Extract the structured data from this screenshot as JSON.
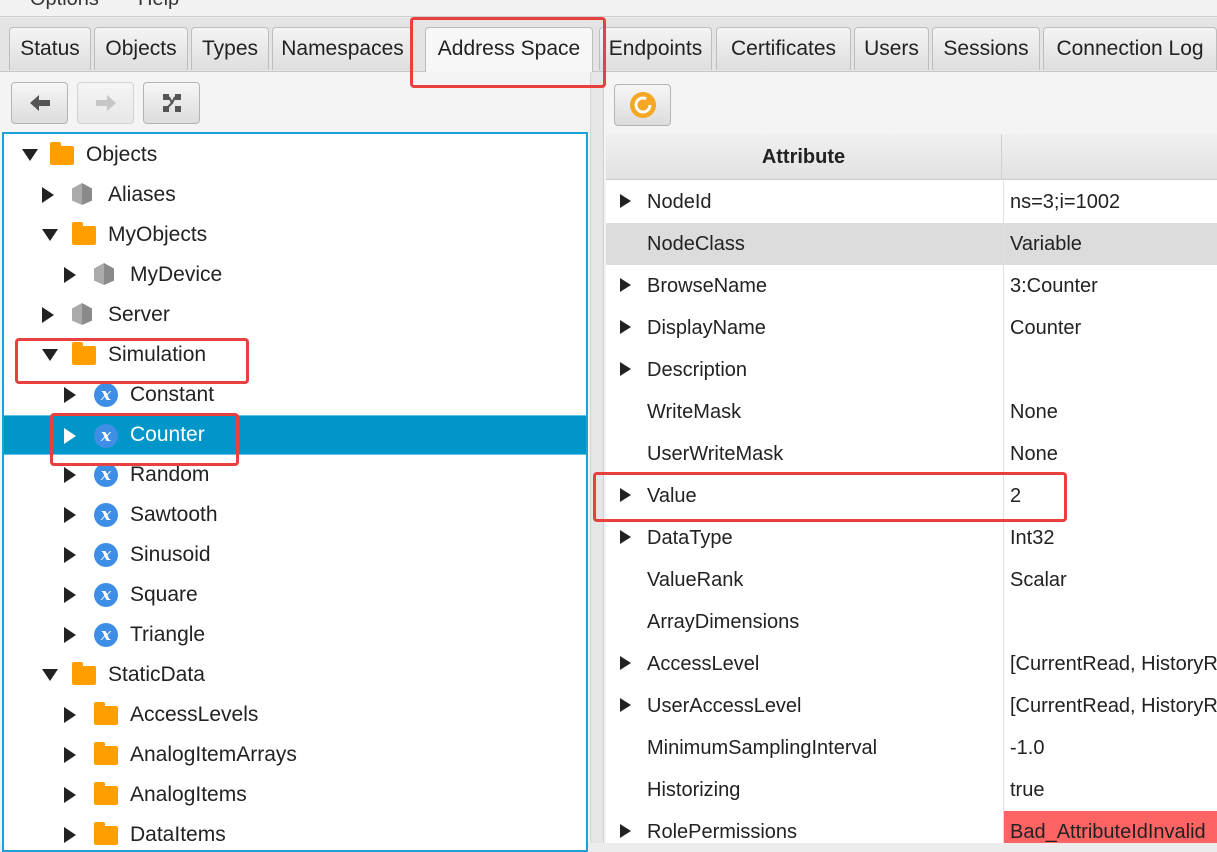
{
  "menu": [
    "Options",
    "Help"
  ],
  "tabs": [
    "Status",
    "Objects",
    "Types",
    "Namespaces",
    "Address Space",
    "Endpoints",
    "Certificates",
    "Users",
    "Sessions",
    "Connection Log"
  ],
  "active_tab": "Address Space",
  "tree": [
    {
      "label": "Objects",
      "icon": "folder",
      "level": 0,
      "expanded": true
    },
    {
      "label": "Aliases",
      "icon": "object",
      "level": 1,
      "expanded": false
    },
    {
      "label": "MyObjects",
      "icon": "folder",
      "level": 1,
      "expanded": true
    },
    {
      "label": "MyDevice",
      "icon": "object",
      "level": 2,
      "expanded": false
    },
    {
      "label": "Server",
      "icon": "object",
      "level": 1,
      "expanded": false
    },
    {
      "label": "Simulation",
      "icon": "folder",
      "level": 1,
      "expanded": true
    },
    {
      "label": "Constant",
      "icon": "variable",
      "level": 2,
      "expanded": false
    },
    {
      "label": "Counter",
      "icon": "variable",
      "level": 2,
      "expanded": false,
      "selected": true
    },
    {
      "label": "Random",
      "icon": "variable",
      "level": 2,
      "expanded": false
    },
    {
      "label": "Sawtooth",
      "icon": "variable",
      "level": 2,
      "expanded": false
    },
    {
      "label": "Sinusoid",
      "icon": "variable",
      "level": 2,
      "expanded": false
    },
    {
      "label": "Square",
      "icon": "variable",
      "level": 2,
      "expanded": false
    },
    {
      "label": "Triangle",
      "icon": "variable",
      "level": 2,
      "expanded": false
    },
    {
      "label": "StaticData",
      "icon": "folder",
      "level": 1,
      "expanded": true
    },
    {
      "label": "AccessLevels",
      "icon": "folder",
      "level": 2,
      "expanded": false
    },
    {
      "label": "AnalogItemArrays",
      "icon": "folder",
      "level": 2,
      "expanded": false
    },
    {
      "label": "AnalogItems",
      "icon": "folder",
      "level": 2,
      "expanded": false
    },
    {
      "label": "DataItems",
      "icon": "folder",
      "level": 2,
      "expanded": false
    }
  ],
  "attributes": {
    "header": [
      "Attribute",
      ""
    ],
    "rows": [
      {
        "attr": "NodeId",
        "value": "ns=3;i=1002",
        "expandable": true
      },
      {
        "attr": "NodeClass",
        "value": "Variable",
        "expandable": false,
        "highlight": true
      },
      {
        "attr": "BrowseName",
        "value": "3:Counter",
        "expandable": true
      },
      {
        "attr": "DisplayName",
        "value": "Counter",
        "expandable": true
      },
      {
        "attr": "Description",
        "value": "",
        "expandable": true
      },
      {
        "attr": "WriteMask",
        "value": "None",
        "expandable": false
      },
      {
        "attr": "UserWriteMask",
        "value": "None",
        "expandable": false
      },
      {
        "attr": "Value",
        "value": "2",
        "expandable": true
      },
      {
        "attr": "DataType",
        "value": "Int32",
        "expandable": true
      },
      {
        "attr": "ValueRank",
        "value": "Scalar",
        "expandable": false
      },
      {
        "attr": "ArrayDimensions",
        "value": "",
        "expandable": false
      },
      {
        "attr": "AccessLevel",
        "value": "[CurrentRead, HistoryRead]",
        "expandable": true
      },
      {
        "attr": "UserAccessLevel",
        "value": "[CurrentRead, HistoryRead]",
        "expandable": true
      },
      {
        "attr": "MinimumSamplingInterval",
        "value": "-1.0",
        "expandable": false
      },
      {
        "attr": "Historizing",
        "value": "true",
        "expandable": false
      },
      {
        "attr": "RolePermissions",
        "value": "Bad_AttributeIdInvalid",
        "expandable": true,
        "error": true
      }
    ]
  },
  "colors": {
    "selection": "#0096c9",
    "error": "#ff6464",
    "annotation": "#e8403f",
    "folder": "#ff9e00",
    "variable": "#3f8ee6"
  }
}
